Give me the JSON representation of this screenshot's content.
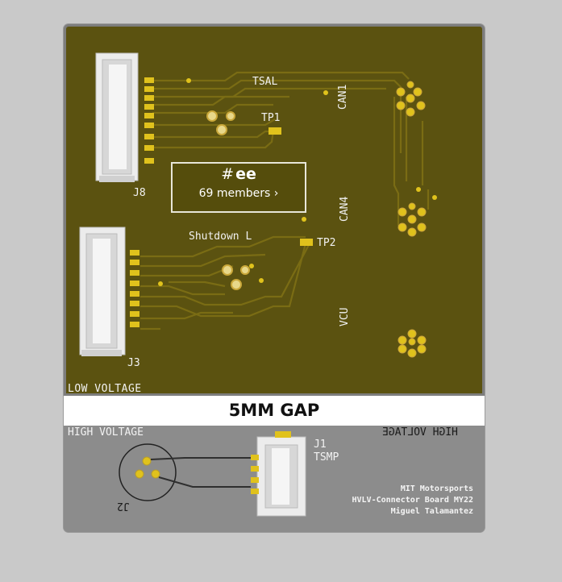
{
  "board": {
    "low_voltage_label": "LOW VOLTAGE",
    "gap_label": "5MM GAP",
    "high_voltage_label_left": "HIGH VOLTAGE",
    "high_voltage_label_right": "HIGH VOLTAGE",
    "connectors": {
      "j8": "J8",
      "j3": "J3",
      "j1": "J1",
      "j1_sub": "TSMP",
      "j2": "J2"
    },
    "signals": {
      "tsal": "TSAL",
      "tp1": "TP1",
      "tp2": "TP2",
      "shutdown": "Shutdown L",
      "can1": "CAN1",
      "can4": "CAN4",
      "vcu": "VCU"
    },
    "credits": {
      "line1": "MIT Motorsports",
      "line2": "HVLV-Connector Board MY22",
      "line3": "Miguel Talamantez"
    }
  },
  "channel_card": {
    "hash": "#",
    "name": "ee",
    "members": "69 members ›"
  },
  "colors": {
    "lv_board": "#5b5210",
    "trace": "#7a6e16",
    "pad": "#e0c21c",
    "hv_board": "#8c8c8c",
    "connector_body": "#ececec"
  }
}
